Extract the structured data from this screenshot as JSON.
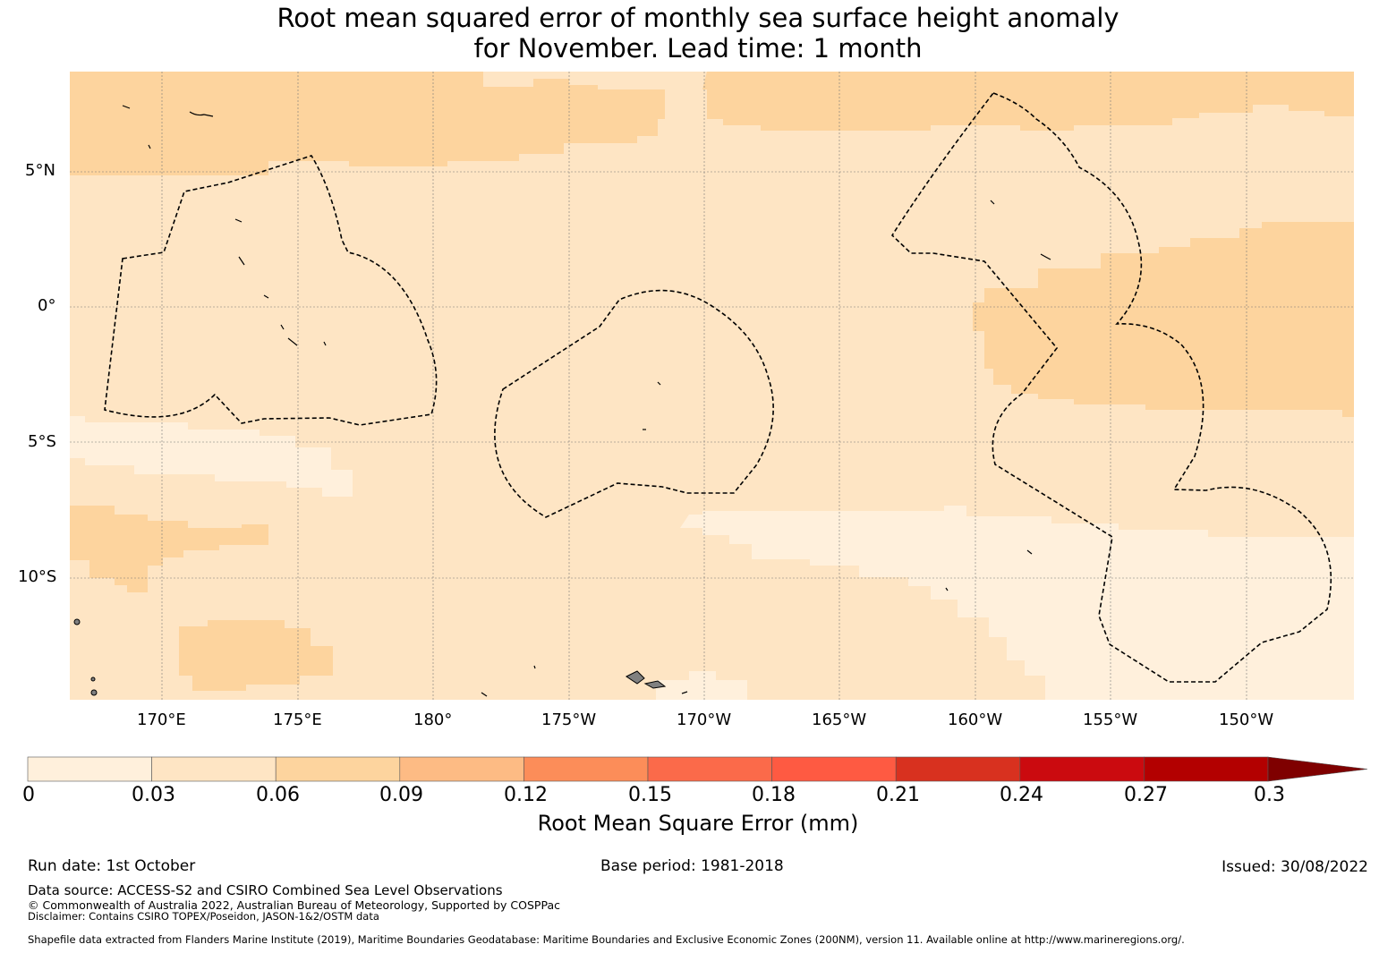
{
  "title": {
    "line1": "Root mean squared error of monthly sea surface height anomaly",
    "line2": "for November. Lead time: 1 month"
  },
  "map": {
    "lat_labels": [
      "5°N",
      "0°",
      "5°S",
      "10°S"
    ],
    "lon_labels": [
      "170°E",
      "175°E",
      "180°",
      "175°W",
      "170°W",
      "165°W",
      "160°W",
      "155°W",
      "150°W"
    ],
    "colors": {
      "bin_0_003": "#fff0dc",
      "bin_003_006": "#fee5c4",
      "bin_006_009": "#fdd49e",
      "land": "#808080",
      "grid": "#777777",
      "eez_line": "#000000"
    }
  },
  "colorbar": {
    "label": "Root Mean Square Error (mm)",
    "ticks": [
      "0",
      "0.03",
      "0.06",
      "0.09",
      "0.12",
      "0.15",
      "0.18",
      "0.21",
      "0.24",
      "0.27",
      "0.3"
    ],
    "colors": [
      "#fff0dc",
      "#fee5c4",
      "#fdd49e",
      "#fdbb84",
      "#fc8d59",
      "#fb6a4a",
      "#fe5a42",
      "#d8311f",
      "#cb0a0f",
      "#b30000",
      "#7f0000"
    ]
  },
  "footer": {
    "run_date": "Run date: 1st October",
    "base_period": "Base period: 1981-2018",
    "issued": "Issued: 30/08/2022",
    "data_source": "Data source: ACCESS-S2 and CSIRO Combined Sea Level Observations",
    "copyright": "© Commonwealth of Australia 2022, Australian Bureau of Meteorology, Supported by COSPPac",
    "disclaimer": "Disclaimer: Contains CSIRO TOPEX/Poseidon, JASON-1&2/OSTM data",
    "shapefile": "Shapefile data extracted from Flanders Marine Institute (2019), Maritime Boundaries Geodatabase: Maritime Boundaries and Exclusive Economic Zones (200NM), version 11. Available online at http://www.marineregions.org/."
  }
}
